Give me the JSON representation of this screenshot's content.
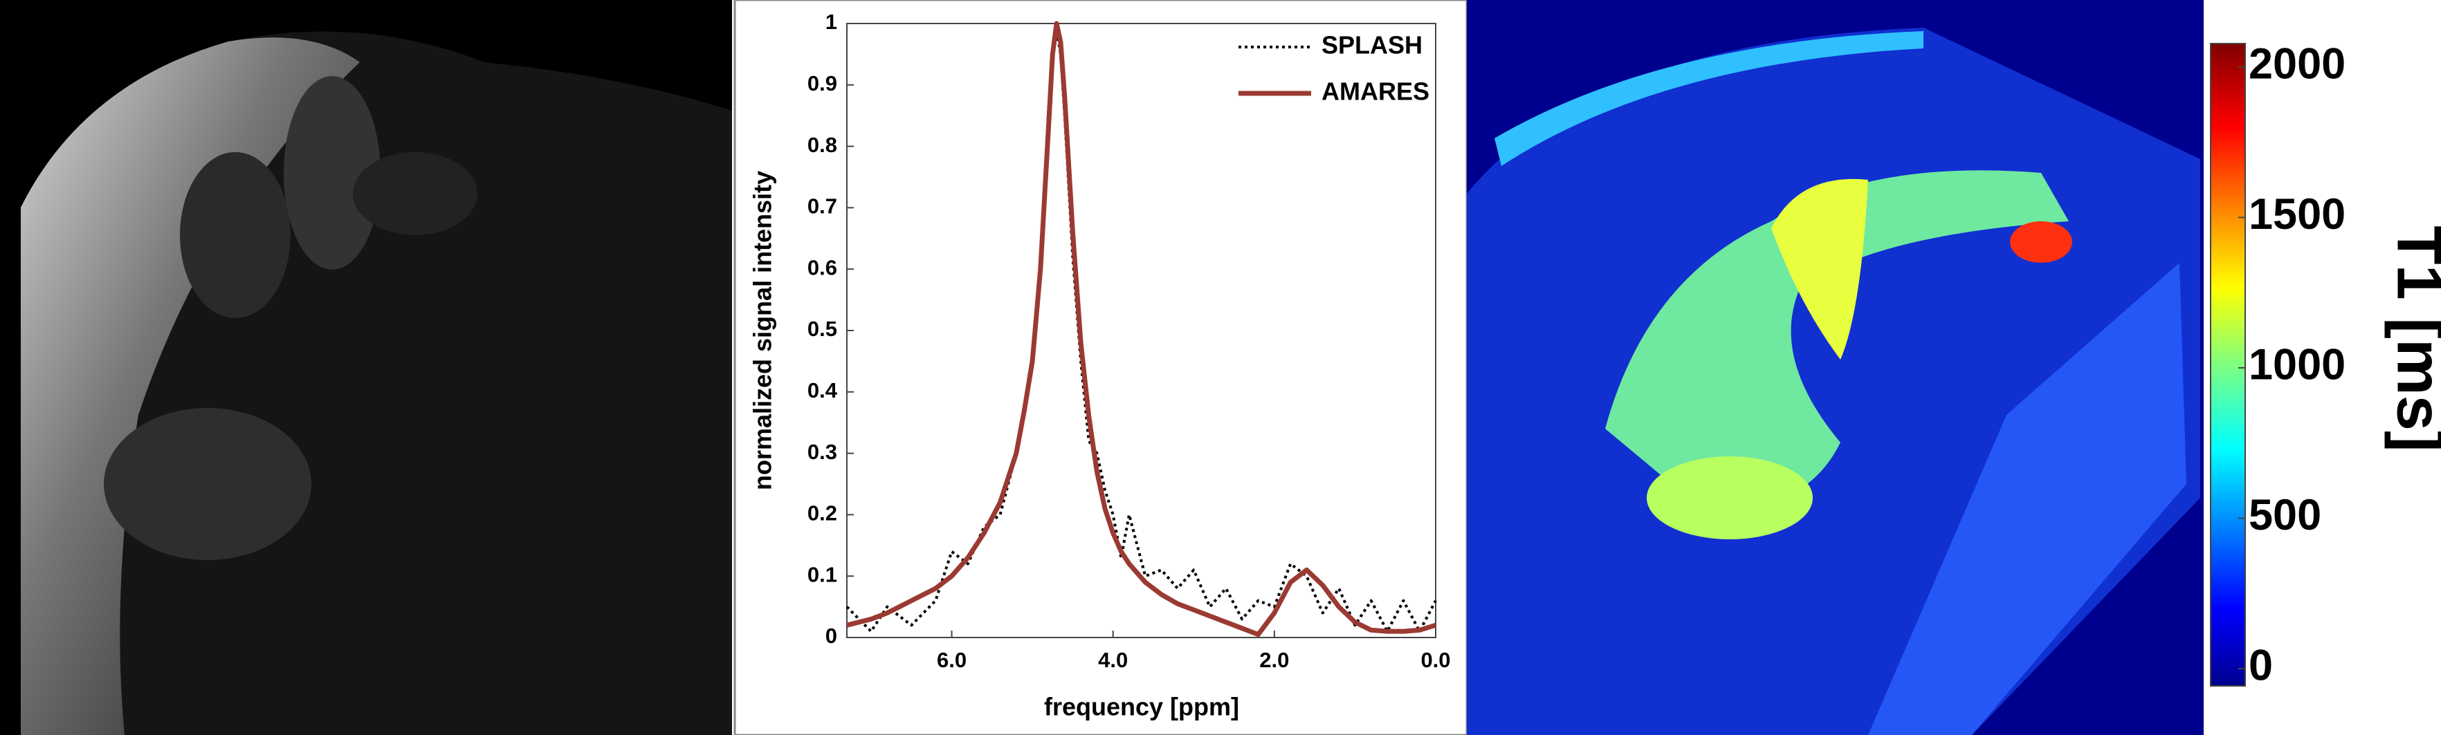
{
  "chart_data": {
    "type": "line",
    "xlabel": "frequency [ppm]",
    "ylabel": "normalized signal intensity",
    "x": [
      7.3,
      7.0,
      6.8,
      6.5,
      6.2,
      6.0,
      5.8,
      5.6,
      5.4,
      5.2,
      5.1,
      5.0,
      4.9,
      4.8,
      4.75,
      4.7,
      4.65,
      4.6,
      4.5,
      4.4,
      4.3,
      4.2,
      4.1,
      4.0,
      3.9,
      3.8,
      3.6,
      3.4,
      3.2,
      3.0,
      2.8,
      2.6,
      2.4,
      2.2,
      2.0,
      1.8,
      1.6,
      1.4,
      1.2,
      1.0,
      0.8,
      0.6,
      0.4,
      0.2,
      0.0
    ],
    "series": [
      {
        "name": "SPLASH",
        "color": "#000000",
        "dash": "dotted",
        "values": [
          0.05,
          0.01,
          0.05,
          0.02,
          0.06,
          0.14,
          0.12,
          0.18,
          0.2,
          0.3,
          0.38,
          0.46,
          0.62,
          0.86,
          0.96,
          0.99,
          0.95,
          0.85,
          0.62,
          0.45,
          0.32,
          0.3,
          0.24,
          0.2,
          0.13,
          0.2,
          0.1,
          0.11,
          0.08,
          0.11,
          0.05,
          0.08,
          0.03,
          0.06,
          0.05,
          0.12,
          0.1,
          0.04,
          0.08,
          0.02,
          0.06,
          0.01,
          0.06,
          0.01,
          0.06
        ]
      },
      {
        "name": "AMARES",
        "color": "#9b3a32",
        "dash": "solid",
        "values": [
          0.02,
          0.03,
          0.04,
          0.06,
          0.08,
          0.1,
          0.13,
          0.17,
          0.22,
          0.3,
          0.37,
          0.45,
          0.6,
          0.83,
          0.95,
          1.0,
          0.97,
          0.88,
          0.66,
          0.48,
          0.36,
          0.27,
          0.21,
          0.17,
          0.14,
          0.12,
          0.09,
          0.07,
          0.055,
          0.045,
          0.035,
          0.025,
          0.015,
          0.005,
          0.04,
          0.09,
          0.11,
          0.085,
          0.05,
          0.025,
          0.012,
          0.01,
          0.01,
          0.012,
          0.02
        ]
      }
    ],
    "xlim": [
      7.3,
      0
    ],
    "xticks": [
      {
        "value": 6,
        "label": "6.0"
      },
      {
        "value": 4,
        "label": "4.0"
      },
      {
        "value": 2,
        "label": "2.0"
      },
      {
        "value": 0,
        "label": "0.0"
      }
    ],
    "ylim": [
      0,
      1
    ],
    "yticks": [
      0,
      0.1,
      0.2,
      0.3,
      0.4,
      0.5,
      0.6,
      0.7,
      0.8,
      0.9,
      1
    ],
    "legend": "upper right"
  },
  "colorbar": {
    "label": "T1 [ms]",
    "lim": [
      0,
      2000
    ],
    "ticks": [
      0,
      500,
      1000,
      1500,
      2000
    ]
  }
}
